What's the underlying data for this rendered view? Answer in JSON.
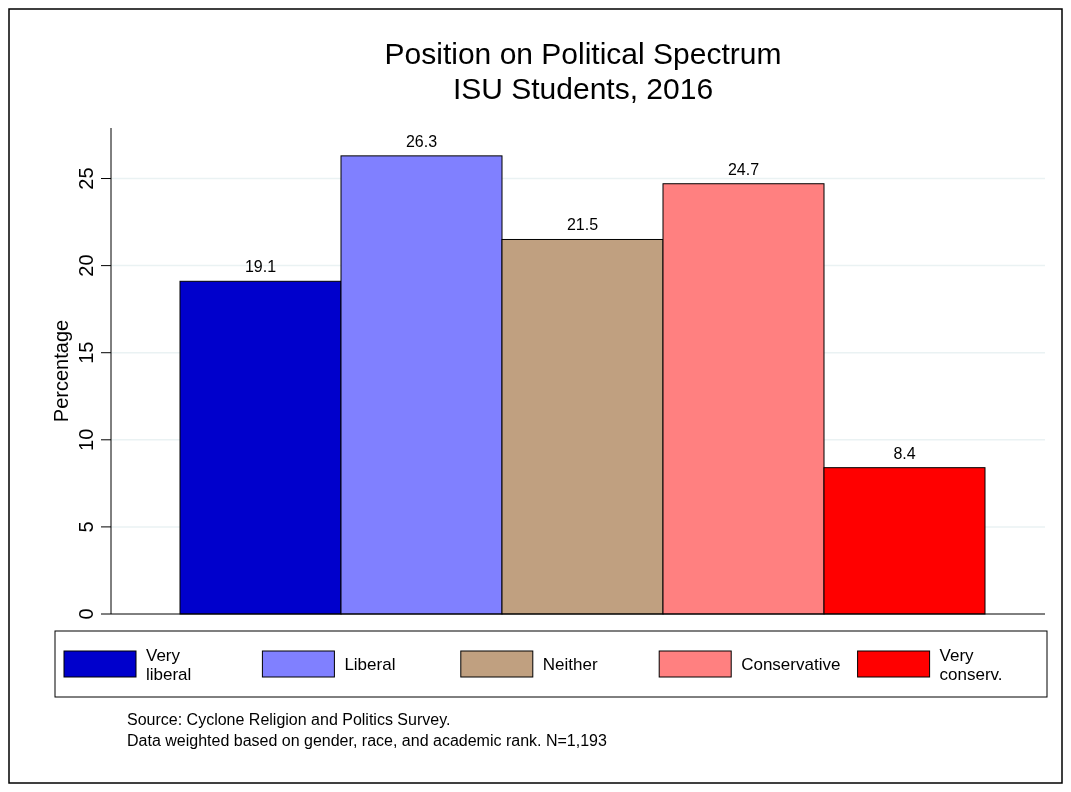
{
  "chart_data": {
    "type": "bar",
    "title": "Position on Political Spectrum",
    "subtitle": "ISU Students, 2016",
    "ylabel": "Percentage",
    "categories": [
      null,
      null,
      null,
      null,
      null
    ],
    "series": [
      {
        "name": "Very liberal",
        "color": "#0000cc",
        "values": [
          19.1,
          null,
          null,
          null,
          null
        ]
      },
      {
        "name": "Liberal",
        "color": "#8080ff",
        "values": [
          null,
          26.3,
          null,
          null,
          null
        ]
      },
      {
        "name": "Neither",
        "color": "#c0a080",
        "values": [
          null,
          null,
          21.5,
          null,
          null
        ]
      },
      {
        "name": "Conservative",
        "color": "#ff8080",
        "values": [
          null,
          null,
          null,
          24.7,
          null
        ]
      },
      {
        "name": "Very conserv.",
        "color": "#ff0000",
        "values": [
          null,
          null,
          null,
          null,
          8.4
        ]
      }
    ],
    "ylim": [
      0,
      27.9
    ],
    "yticks": [
      0,
      5,
      10,
      15,
      20,
      25
    ],
    "grid": "y",
    "legend": "bottom",
    "data_labels": true,
    "annotations": [
      "Source: Cyclone Religion and Politics Survey.",
      "Data weighted based on gender, race, and academic rank. N=1,193"
    ]
  }
}
